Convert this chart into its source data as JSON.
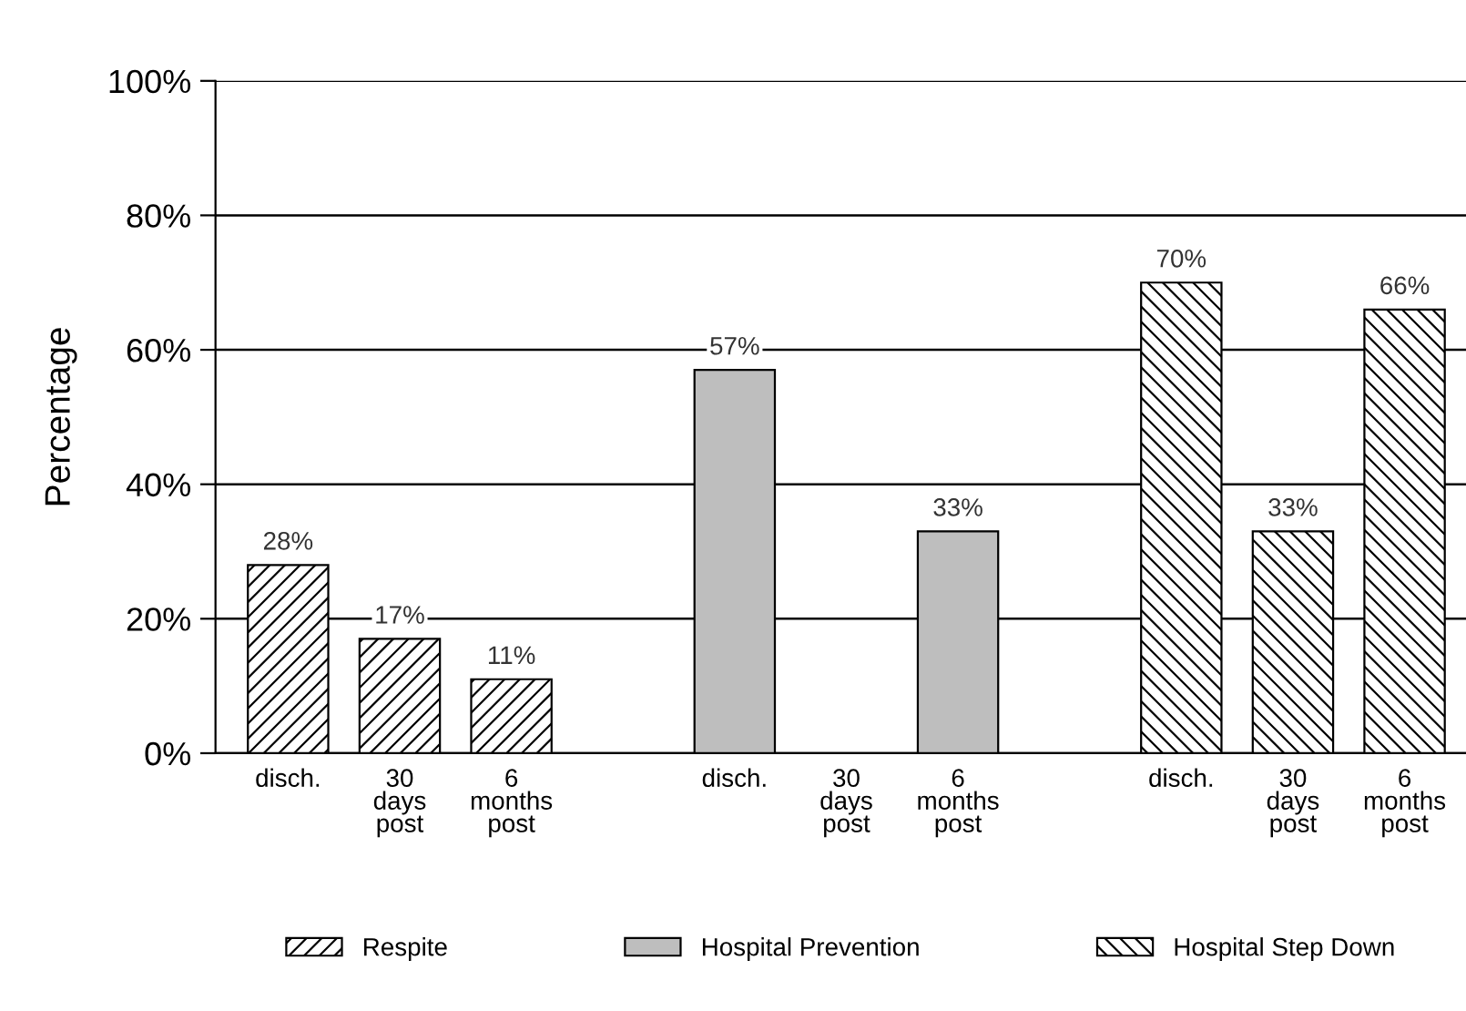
{
  "chart_data": {
    "type": "bar",
    "ylabel": "Percentage",
    "categories": [
      "disch.",
      "30\ndays\npost",
      "6\nmonths\npost",
      null,
      "disch.",
      "30\ndays\npost",
      "6\nmonths\npost",
      null,
      "disch.",
      "30\ndays\npost",
      "6\nmonths\npost"
    ],
    "series": [
      {
        "name": "Respite",
        "color": "#000000",
        "values": [
          28,
          17,
          11,
          null,
          null,
          null,
          null,
          null,
          null,
          null,
          null
        ],
        "value_labels": [
          "28%",
          "17%",
          "11%",
          null,
          null,
          null,
          null,
          null,
          null,
          null,
          null
        ]
      },
      {
        "name": "Hospital Prevention",
        "color": "#bebebe",
        "values": [
          null,
          null,
          null,
          null,
          57,
          null,
          33,
          null,
          null,
          null,
          null
        ],
        "value_labels": [
          null,
          null,
          null,
          null,
          "57%",
          null,
          "33%",
          null,
          null,
          null,
          null
        ]
      },
      {
        "name": "Hospital Step Down",
        "color": "#000000",
        "values": [
          null,
          null,
          null,
          null,
          null,
          null,
          null,
          null,
          70,
          33,
          66
        ],
        "value_labels": [
          null,
          null,
          null,
          null,
          null,
          null,
          null,
          null,
          "70%",
          "33%",
          "66%"
        ]
      }
    ],
    "ylim": [
      0,
      100
    ],
    "yticks": [
      {
        "value": 0,
        "label": "0%"
      },
      {
        "value": 20,
        "label": "20%"
      },
      {
        "value": 40,
        "label": "40%"
      },
      {
        "value": 60,
        "label": "60%"
      },
      {
        "value": 80,
        "label": "80%"
      },
      {
        "value": 100,
        "label": "100%"
      }
    ],
    "grid": "y",
    "legend": "bottom"
  }
}
